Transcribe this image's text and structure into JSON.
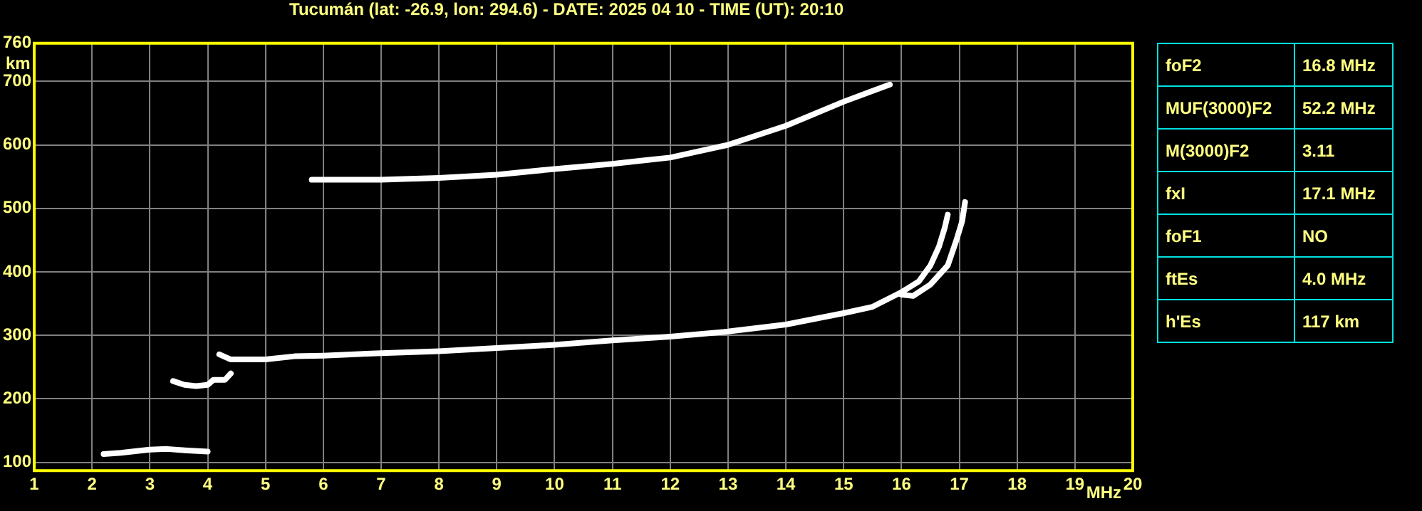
{
  "chart_data": [
    {
      "type": "line",
      "title": "Tucumán (lat: -26.9, lon: 294.6) - DATE: 2025 04 10 - TIME (UT): 20:10",
      "xlabel": "MHz",
      "ylabel": "km",
      "xlim": [
        1,
        20
      ],
      "xticks": [
        1,
        2,
        3,
        4,
        5,
        6,
        7,
        8,
        9,
        10,
        11,
        12,
        13,
        14,
        15,
        16,
        17,
        18,
        19,
        20
      ],
      "ylim": [
        87,
        760
      ],
      "yticks": [
        100,
        200,
        300,
        400,
        500,
        600,
        700,
        760
      ],
      "grid": true,
      "legend": false,
      "marker": "none",
      "line_style": "solid",
      "series": [
        {
          "color": "#ffffff",
          "x": [
            2.2,
            2.5,
            2.8,
            3.0,
            3.3,
            3.6,
            4.0
          ],
          "values": [
            113,
            115,
            118,
            120,
            121,
            119,
            117
          ]
        },
        {
          "color": "#ffffff",
          "x": [
            3.4,
            3.6,
            3.8,
            4.0,
            4.1,
            4.3,
            4.4
          ],
          "values": [
            228,
            222,
            220,
            222,
            230,
            230,
            240
          ]
        },
        {
          "color": "#ffffff",
          "x": [
            4.2,
            4.4,
            4.6,
            5,
            5.5,
            6,
            7,
            8,
            9,
            10,
            11,
            12,
            13,
            14,
            15,
            15.5,
            16,
            16.3,
            16.5,
            16.65,
            16.75,
            16.8
          ],
          "values": [
            270,
            262,
            262,
            262,
            267,
            268,
            272,
            275,
            280,
            285,
            292,
            298,
            306,
            317,
            335,
            345,
            368,
            385,
            410,
            440,
            470,
            490
          ]
        },
        {
          "color": "#ffffff",
          "x": [
            16,
            16.2,
            16.5,
            16.8,
            16.95,
            17.05,
            17.1
          ],
          "values": [
            364,
            362,
            380,
            410,
            450,
            480,
            510
          ]
        },
        {
          "color": "#ffffff",
          "x": [
            5.8,
            7,
            8,
            9,
            10,
            11,
            11.5,
            12,
            13,
            14,
            15,
            15.5,
            15.8
          ],
          "values": [
            545,
            545,
            548,
            553,
            562,
            570,
            575,
            580,
            600,
            630,
            668,
            685,
            695
          ]
        }
      ]
    },
    {
      "type": "other",
      "annotations": [
        "foF2",
        "16.8 MHz",
        "MUF(3000)F2",
        "52.2 MHz",
        "M(3000)F2",
        "3.11",
        "fxI",
        "17.1 MHz",
        "foF1",
        "NO",
        "ftEs",
        "4.0 MHz",
        "h'Es",
        "117 km"
      ]
    }
  ]
}
